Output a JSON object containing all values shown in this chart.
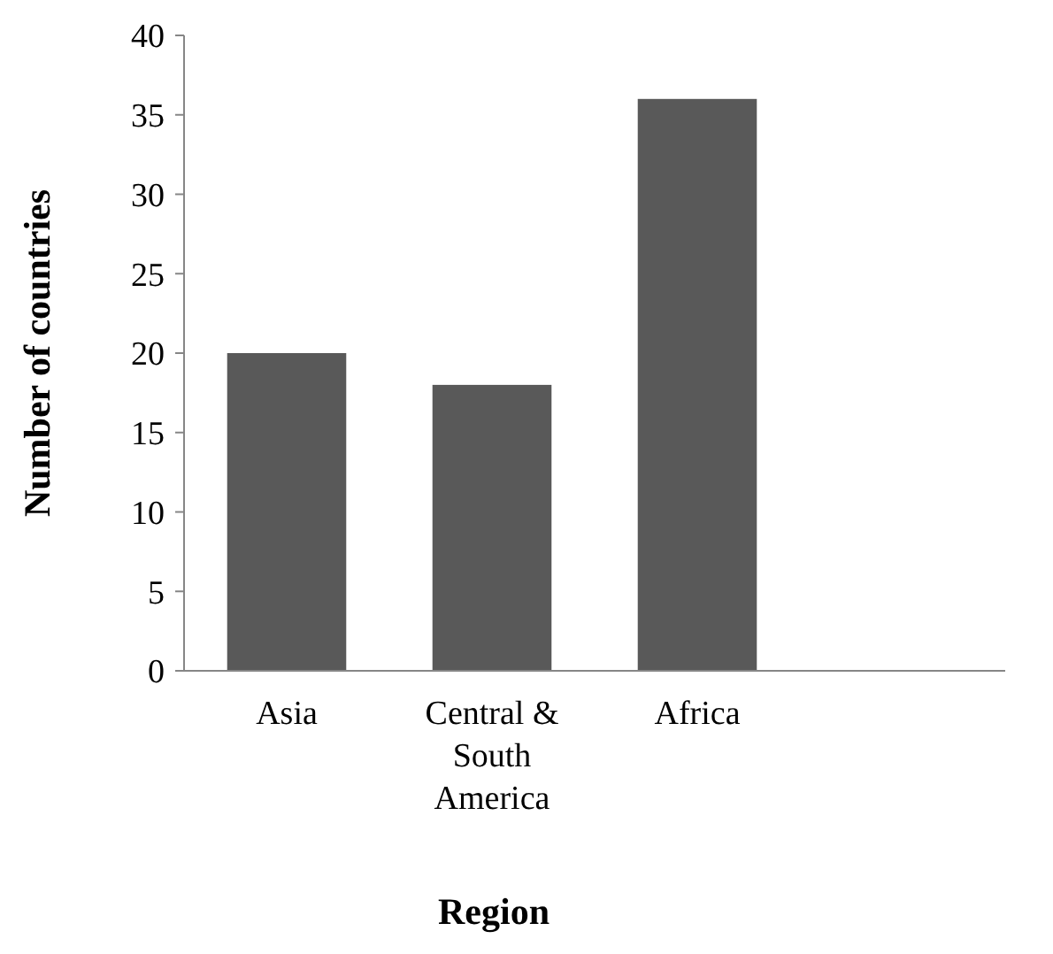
{
  "chart_data": {
    "type": "bar",
    "xlabel": "Region",
    "ylabel": "Number of countries",
    "categories": [
      "Asia",
      "Central & South America",
      "Africa",
      null
    ],
    "values": [
      20,
      18,
      36,
      null
    ],
    "color": "#595959",
    "ylim": [
      0,
      40
    ],
    "yticks": [
      0,
      5,
      10,
      15,
      20,
      25,
      30,
      35,
      40
    ],
    "grid": false
  }
}
